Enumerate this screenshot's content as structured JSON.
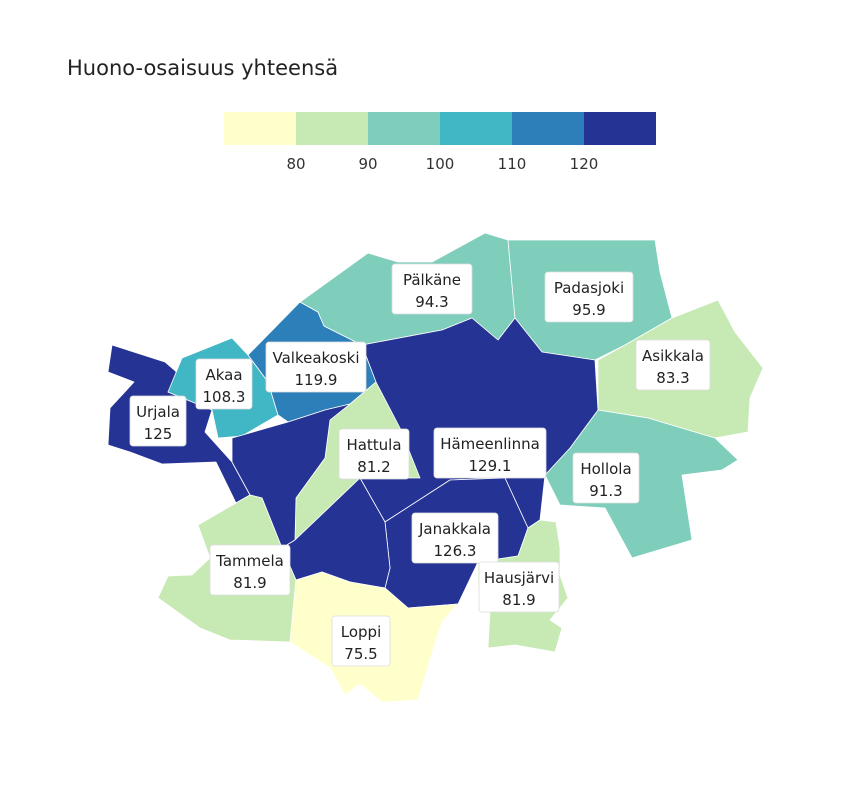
{
  "title": "Huono-osaisuus yhteensä",
  "legend": {
    "colors": [
      "#ffffcc",
      "#c7e9b4",
      "#7fcdbb",
      "#41b6c4",
      "#2c7fb8",
      "#253494"
    ],
    "breaks": [
      "80",
      "90",
      "100",
      "110",
      "120"
    ]
  },
  "regions": [
    {
      "name": "Pälkäne",
      "value": "94.3"
    },
    {
      "name": "Padasjoki",
      "value": "95.9"
    },
    {
      "name": "Asikkala",
      "value": "83.3"
    },
    {
      "name": "Valkeakoski",
      "value": "119.9"
    },
    {
      "name": "Akaa",
      "value": "108.3"
    },
    {
      "name": "Urjala",
      "value": "125"
    },
    {
      "name": "Hattula",
      "value": "81.2"
    },
    {
      "name": "Hämeenlinna",
      "value": "129.1"
    },
    {
      "name": "Hollola",
      "value": "91.3"
    },
    {
      "name": "Janakkala",
      "value": "126.3"
    },
    {
      "name": "Tammela",
      "value": "81.9"
    },
    {
      "name": "Hausjärvi",
      "value": "81.9"
    },
    {
      "name": "Loppi",
      "value": "75.5"
    }
  ]
}
